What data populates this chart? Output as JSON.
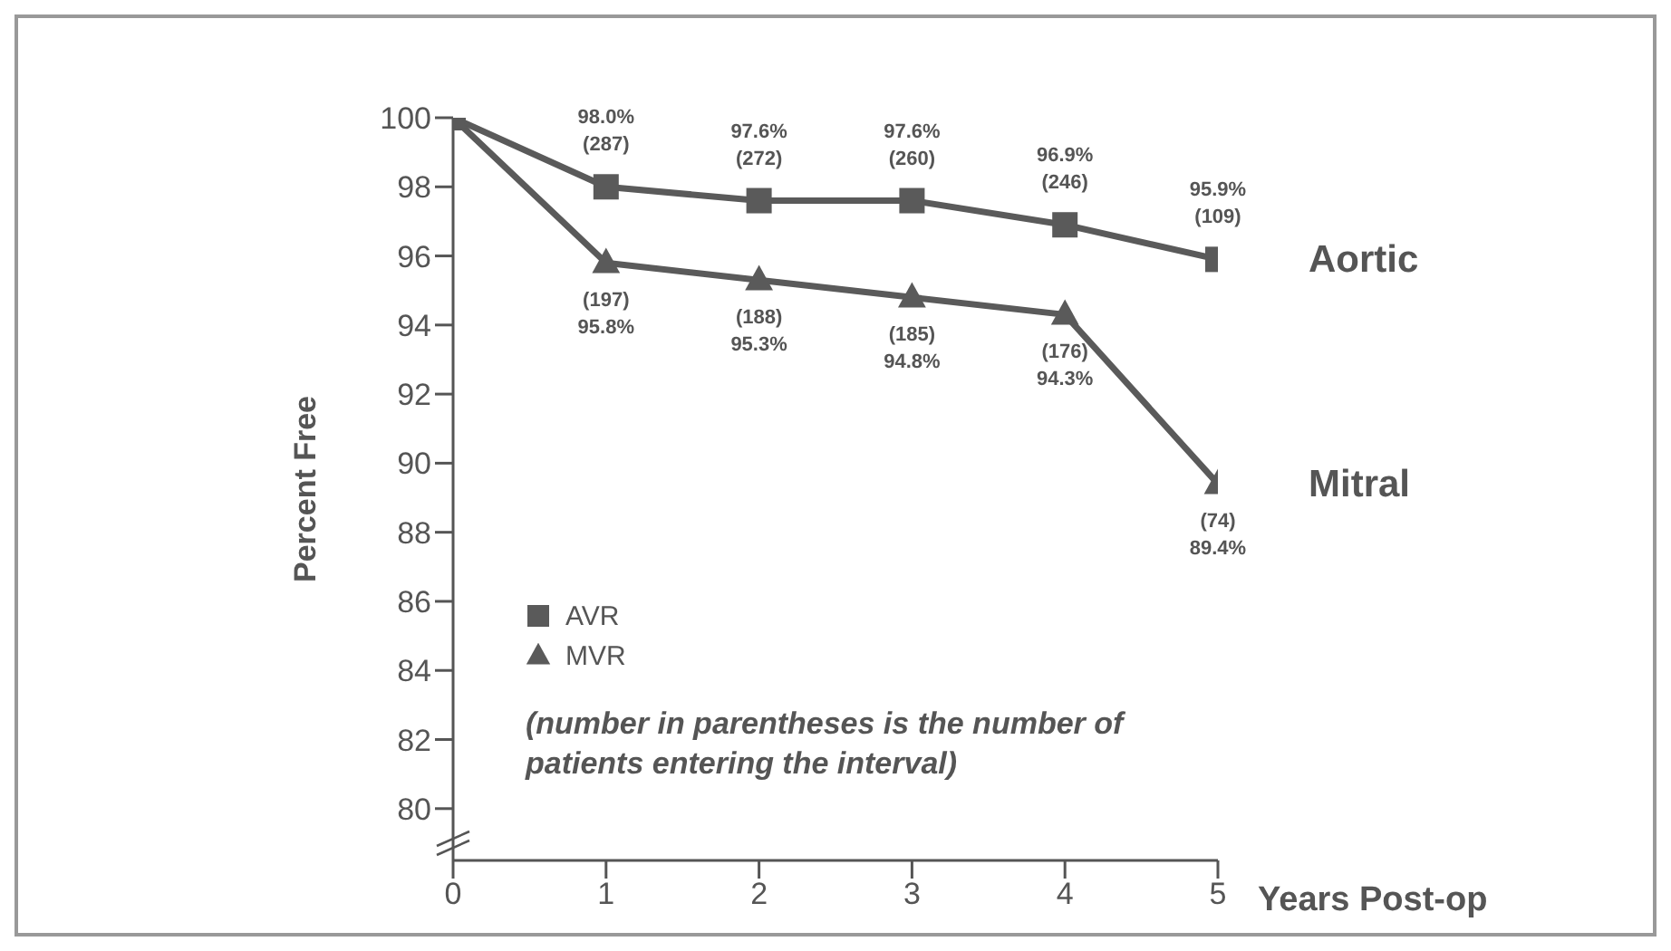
{
  "chart_data": {
    "type": "line",
    "ylabel": "Percent Free",
    "xlabel": "Years Post-op",
    "x": [
      0,
      1,
      2,
      3,
      4,
      5
    ],
    "xlim": [
      0,
      5
    ],
    "xticks": [
      0,
      1,
      2,
      3,
      4,
      5
    ],
    "ylim": [
      78.5,
      100
    ],
    "yticks": [
      80,
      82,
      84,
      86,
      88,
      90,
      92,
      94,
      96,
      98,
      100
    ],
    "grid": false,
    "legend": "bottom left",
    "line_style": "solid",
    "series": [
      {
        "name": "AVR",
        "color": "#5a5a5a",
        "marker": "square",
        "values": [
          100,
          98.0,
          97.6,
          97.6,
          96.9,
          95.9
        ],
        "value_labels": [
          null,
          "98.0%\n(287)",
          "97.6%\n(272)",
          "97.6%\n(260)",
          "96.9%\n(246)",
          "95.9%\n(109)"
        ]
      },
      {
        "name": "MVR",
        "color": "#5a5a5a",
        "marker": "triangle",
        "values": [
          100,
          95.8,
          95.3,
          94.8,
          94.3,
          89.4
        ],
        "value_labels": [
          null,
          "(197)\n95.8%",
          "(188)\n95.3%",
          "(185)\n94.8%",
          "(176)\n94.3%",
          "(74)\n89.4%"
        ]
      }
    ],
    "annotations": [
      {
        "text": "Aortic",
        "x": 5,
        "y": 95.9
      },
      {
        "text": "Mitral",
        "x": 5,
        "y": 89.4
      },
      "(number in parentheses is the number of patients entering the interval)"
    ]
  }
}
